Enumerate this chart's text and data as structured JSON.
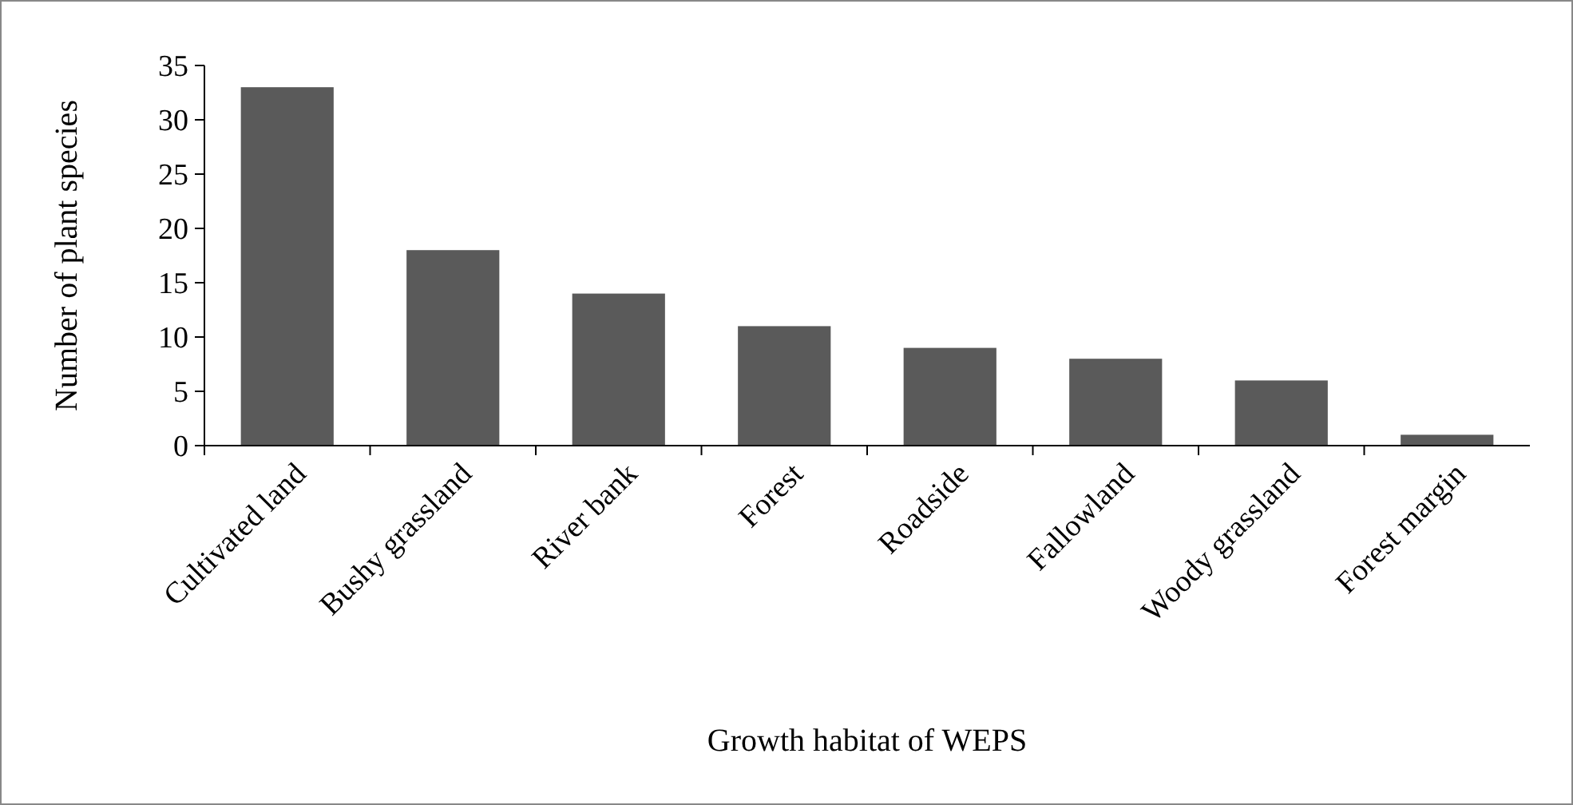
{
  "chart_data": {
    "type": "bar",
    "xlabel": "Growth habitat of WEPS",
    "ylabel": "Number of plant species",
    "categories": [
      "Cultivated land",
      "Bushy grassland",
      "River bank",
      "Forest",
      "Roadside",
      "Fallowland",
      "Woody grassland",
      "Forest margin"
    ],
    "values": [
      33,
      18,
      14,
      11,
      9,
      8,
      6,
      1
    ],
    "color": "#5a5a5a",
    "ylim": [
      0,
      35
    ],
    "yticks": [
      0,
      5,
      10,
      15,
      20,
      25,
      30,
      35
    ],
    "grid": false
  }
}
